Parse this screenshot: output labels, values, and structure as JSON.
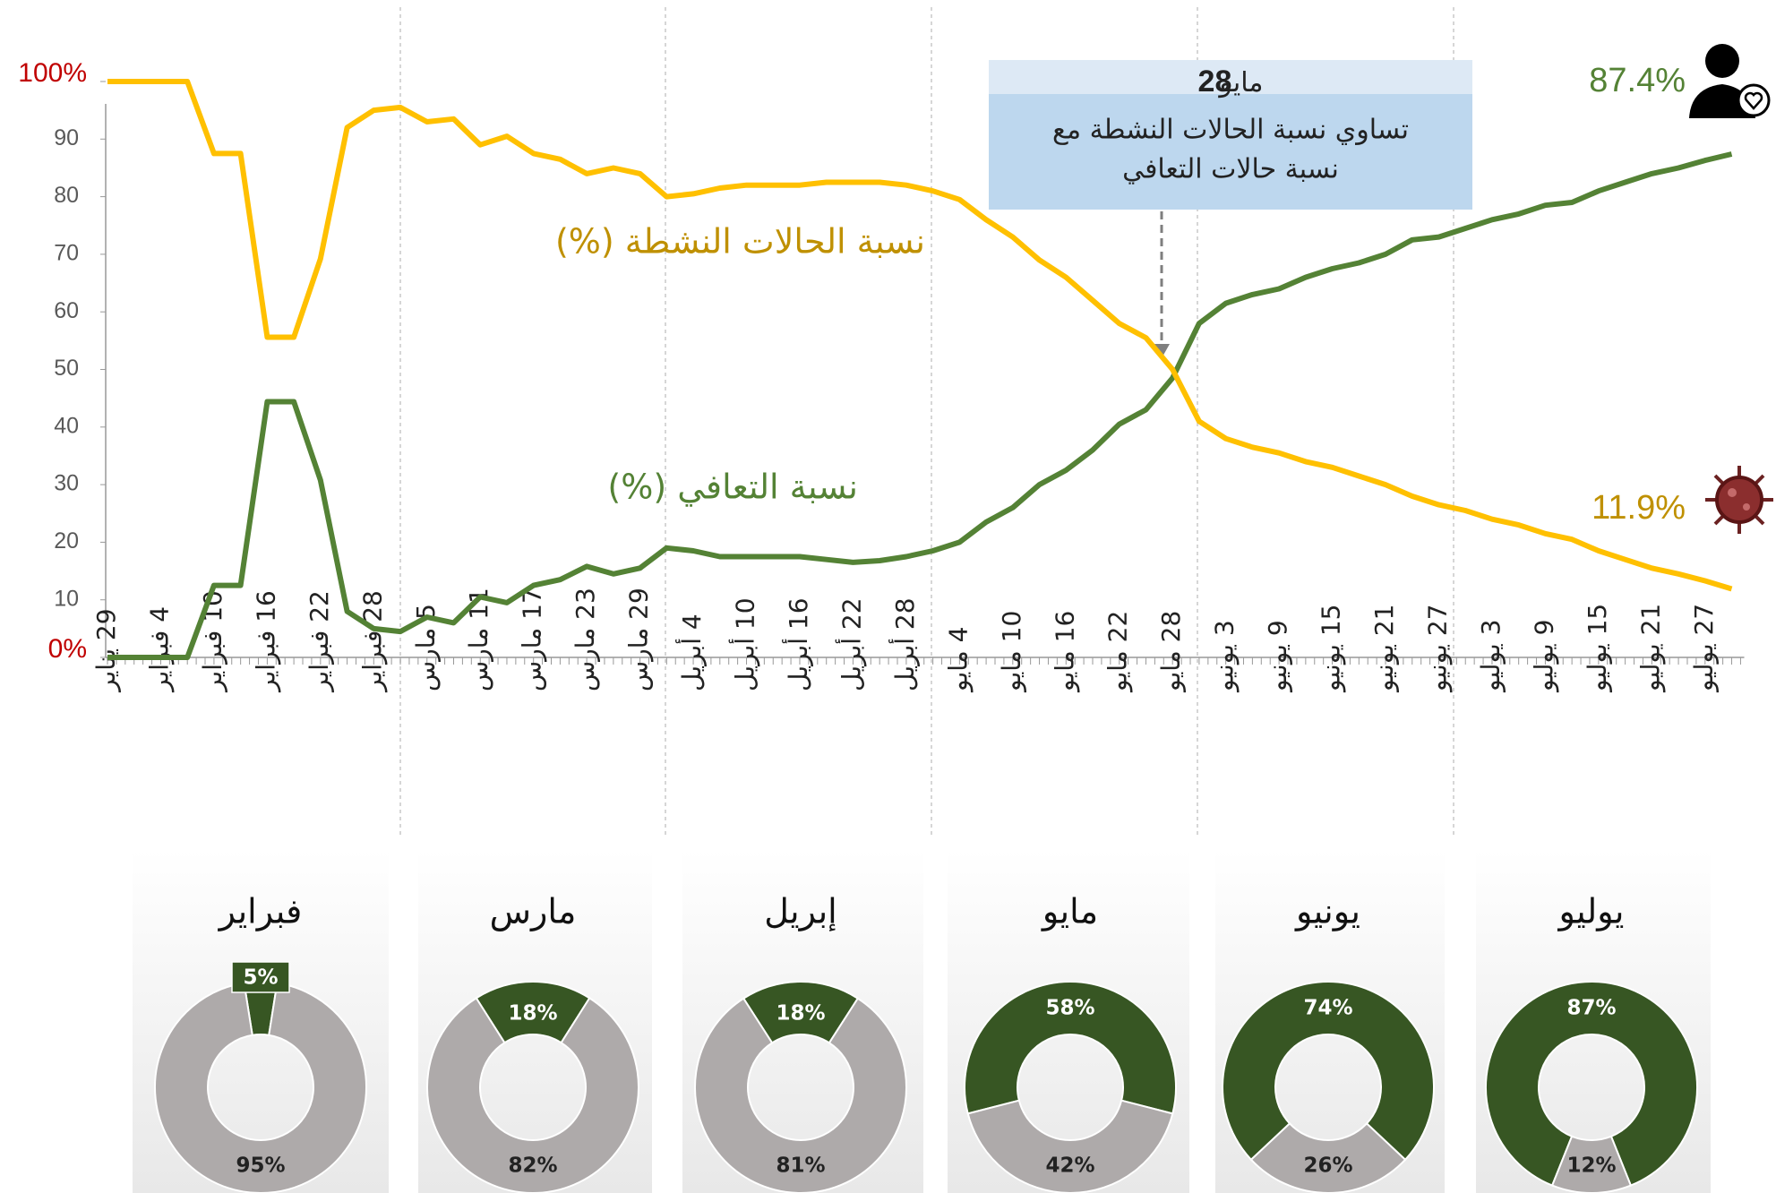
{
  "chart_data": [
    {
      "type": "line",
      "categories": [
        "29 يناير",
        null,
        "4 فبراير",
        null,
        "10 فبراير",
        null,
        "16 فبراير",
        null,
        "22 فبراير",
        null,
        "28 فبراير",
        null,
        "5 مارس",
        null,
        "11 مارس",
        null,
        "17 مارس",
        null,
        "23 مارس",
        null,
        "29 مارس",
        null,
        "4 أبريل",
        null,
        "10 أبريل",
        null,
        "16 أبريل",
        null,
        "22 أبريل",
        null,
        "28 أبريل",
        null,
        "4 مايو",
        null,
        "10 مايو",
        null,
        "16 مايو",
        null,
        "22 مايو",
        null,
        "28 مايو",
        null,
        "3 يونيو",
        null,
        "9 يونيو",
        null,
        "15 يونيو",
        null,
        "21 يونيو",
        null,
        "27 يونيو",
        null,
        "3 يوليو",
        null,
        "9 يوليو",
        null,
        "15 يوليو",
        null,
        "21 يوليو",
        null,
        "27 يوليو",
        null
      ],
      "series": [
        {
          "name": "نسبة التعافي (%)",
          "color": "#548235",
          "label_color": "#548235",
          "end_label": "87.4%",
          "values": [
            0,
            0,
            0,
            0,
            12.5,
            12.5,
            44.4,
            44.4,
            30.8,
            8,
            5,
            4.5,
            7,
            6,
            10.5,
            9.5,
            12.5,
            13.5,
            15.8,
            14.5,
            15.5,
            19,
            18.5,
            17.5,
            17.5,
            17.5,
            17.5,
            17,
            16.5,
            16.8,
            17.5,
            18.5,
            20,
            23.5,
            26,
            30,
            32.5,
            36,
            40.5,
            43,
            48.5,
            58,
            61.5,
            63,
            64,
            66,
            67.5,
            68.5,
            70,
            72.5,
            73,
            74.5,
            76,
            77,
            78.5,
            79,
            81,
            82.5,
            84,
            85,
            86.3,
            87.4
          ]
        },
        {
          "name": "نسبة الحالات النشطة (%)",
          "color": "#ffc000",
          "label_color": "#bf9000",
          "end_label": "11.9%",
          "values": [
            100,
            100,
            100,
            100,
            87.5,
            87.5,
            55.6,
            55.6,
            69.2,
            92,
            95,
            95.5,
            93,
            93.5,
            89,
            90.5,
            87.5,
            86.5,
            84,
            85,
            84,
            80,
            80.5,
            81.5,
            82,
            82,
            82,
            82.5,
            82.5,
            82.5,
            82,
            81,
            79.5,
            76,
            73,
            69,
            66,
            62,
            58,
            55.5,
            50,
            41,
            38,
            36.5,
            35.5,
            34,
            33,
            31.5,
            30,
            28,
            26.5,
            25.5,
            24,
            23,
            21.5,
            20.5,
            18.5,
            17,
            15.5,
            14.5,
            13.3,
            11.9
          ]
        }
      ],
      "ylim": [
        0,
        100
      ],
      "yticks": [
        {
          "value": 0,
          "label": "0%"
        },
        10,
        20,
        30,
        40,
        50,
        60,
        70,
        80,
        90,
        {
          "value": 100,
          "label": "100%"
        }
      ],
      "grid": false,
      "annotation": {
        "day": "28",
        "month": "مايو",
        "lines": [
          "تساوي نسبة الحالات النشطة مع",
          "نسبة حالات التعافي"
        ]
      }
    },
    {
      "type": "donut",
      "title": "فبراير",
      "values": [
        5,
        95
      ],
      "value_labels": [
        "5%",
        "95%"
      ],
      "colors": [
        "#375623",
        "#aeaaaa"
      ]
    },
    {
      "type": "donut",
      "title": "مارس",
      "values": [
        18,
        82
      ],
      "value_labels": [
        "18%",
        "82%"
      ],
      "colors": [
        "#375623",
        "#aeaaaa"
      ]
    },
    {
      "type": "donut",
      "title": "إبريل",
      "values": [
        18,
        81
      ],
      "value_labels": [
        "18%",
        "81%"
      ],
      "colors": [
        "#375623",
        "#aeaaaa"
      ]
    },
    {
      "type": "donut",
      "title": "مايو",
      "values": [
        58,
        42
      ],
      "value_labels": [
        "58%",
        "42%"
      ],
      "colors": [
        "#375623",
        "#aeaaaa"
      ]
    },
    {
      "type": "donut",
      "title": "يونيو",
      "values": [
        74,
        26
      ],
      "value_labels": [
        "74%",
        "26%"
      ],
      "colors": [
        "#375623",
        "#aeaaaa"
      ]
    },
    {
      "type": "donut",
      "title": "يوليو",
      "values": [
        87,
        12
      ],
      "value_labels": [
        "87%",
        "12%"
      ],
      "colors": [
        "#375623",
        "#aeaaaa"
      ]
    }
  ]
}
